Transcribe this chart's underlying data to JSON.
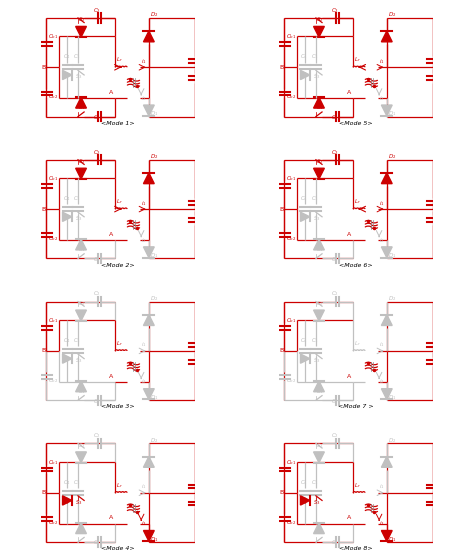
{
  "figure_size": [
    4.74,
    5.6
  ],
  "dpi": 100,
  "background": "#ffffff",
  "red": "#cc0000",
  "gray": "#c0c0c0",
  "modes": [
    "<Mode 1>",
    "<Mode 2>",
    "<Mode 3>",
    "<Mode 4>",
    "<Mode 5>",
    "<Mode 6>",
    "<Mode 7 >",
    "<Mode 8>"
  ],
  "active": {
    "1": {
      "top_rail": true,
      "bot_rail": true,
      "S2": true,
      "C2": true,
      "S1": true,
      "C1": true,
      "S3": false,
      "D3": false,
      "C4": false,
      "C3": false,
      "Lr": true,
      "D2": true,
      "D1": false,
      "arrow_right": true
    },
    "2": {
      "top_rail": true,
      "bot_rail": true,
      "S2": true,
      "C2": true,
      "S1": false,
      "C1": false,
      "S3": false,
      "D3": false,
      "C4": false,
      "C3": false,
      "Lr": true,
      "D2": true,
      "D1": false,
      "arrow_right": true
    },
    "3": {
      "top_rail": true,
      "bot_rail": false,
      "S2": false,
      "C2": false,
      "S1": false,
      "C1": false,
      "S3": false,
      "D3": false,
      "C4": false,
      "C3": false,
      "Lr": true,
      "D2": false,
      "D1": false,
      "arrow_right": false
    },
    "4": {
      "top_rail": true,
      "bot_rail": true,
      "S2": false,
      "C2": false,
      "S1": false,
      "C1": false,
      "S3": true,
      "D3": true,
      "C4": false,
      "C3": false,
      "Lr": true,
      "D2": false,
      "D1": true,
      "arrow_right": false
    },
    "5": {
      "top_rail": true,
      "bot_rail": true,
      "S2": true,
      "C2": true,
      "S1": true,
      "C1": true,
      "S3": false,
      "D3": false,
      "C4": false,
      "C3": false,
      "Lr": true,
      "D2": true,
      "D1": false,
      "arrow_left": true
    },
    "6": {
      "top_rail": true,
      "bot_rail": true,
      "S2": true,
      "C2": true,
      "S1": false,
      "C1": false,
      "S3": false,
      "D3": false,
      "C4": false,
      "C3": false,
      "Lr": true,
      "D2": true,
      "D1": false,
      "arrow_left": true
    },
    "7": {
      "top_rail": true,
      "bot_rail": false,
      "S2": false,
      "C2": false,
      "S1": false,
      "C1": false,
      "S3": false,
      "D3": false,
      "C4": false,
      "C3": false,
      "Lr": false,
      "D2": false,
      "D1": false,
      "arrow_left": false
    },
    "8": {
      "top_rail": true,
      "bot_rail": true,
      "S2": false,
      "C2": false,
      "S1": false,
      "C1": false,
      "S3": true,
      "D3": true,
      "C4": false,
      "C3": false,
      "Lr": true,
      "D2": false,
      "D1": true,
      "arrow_left": false
    }
  }
}
